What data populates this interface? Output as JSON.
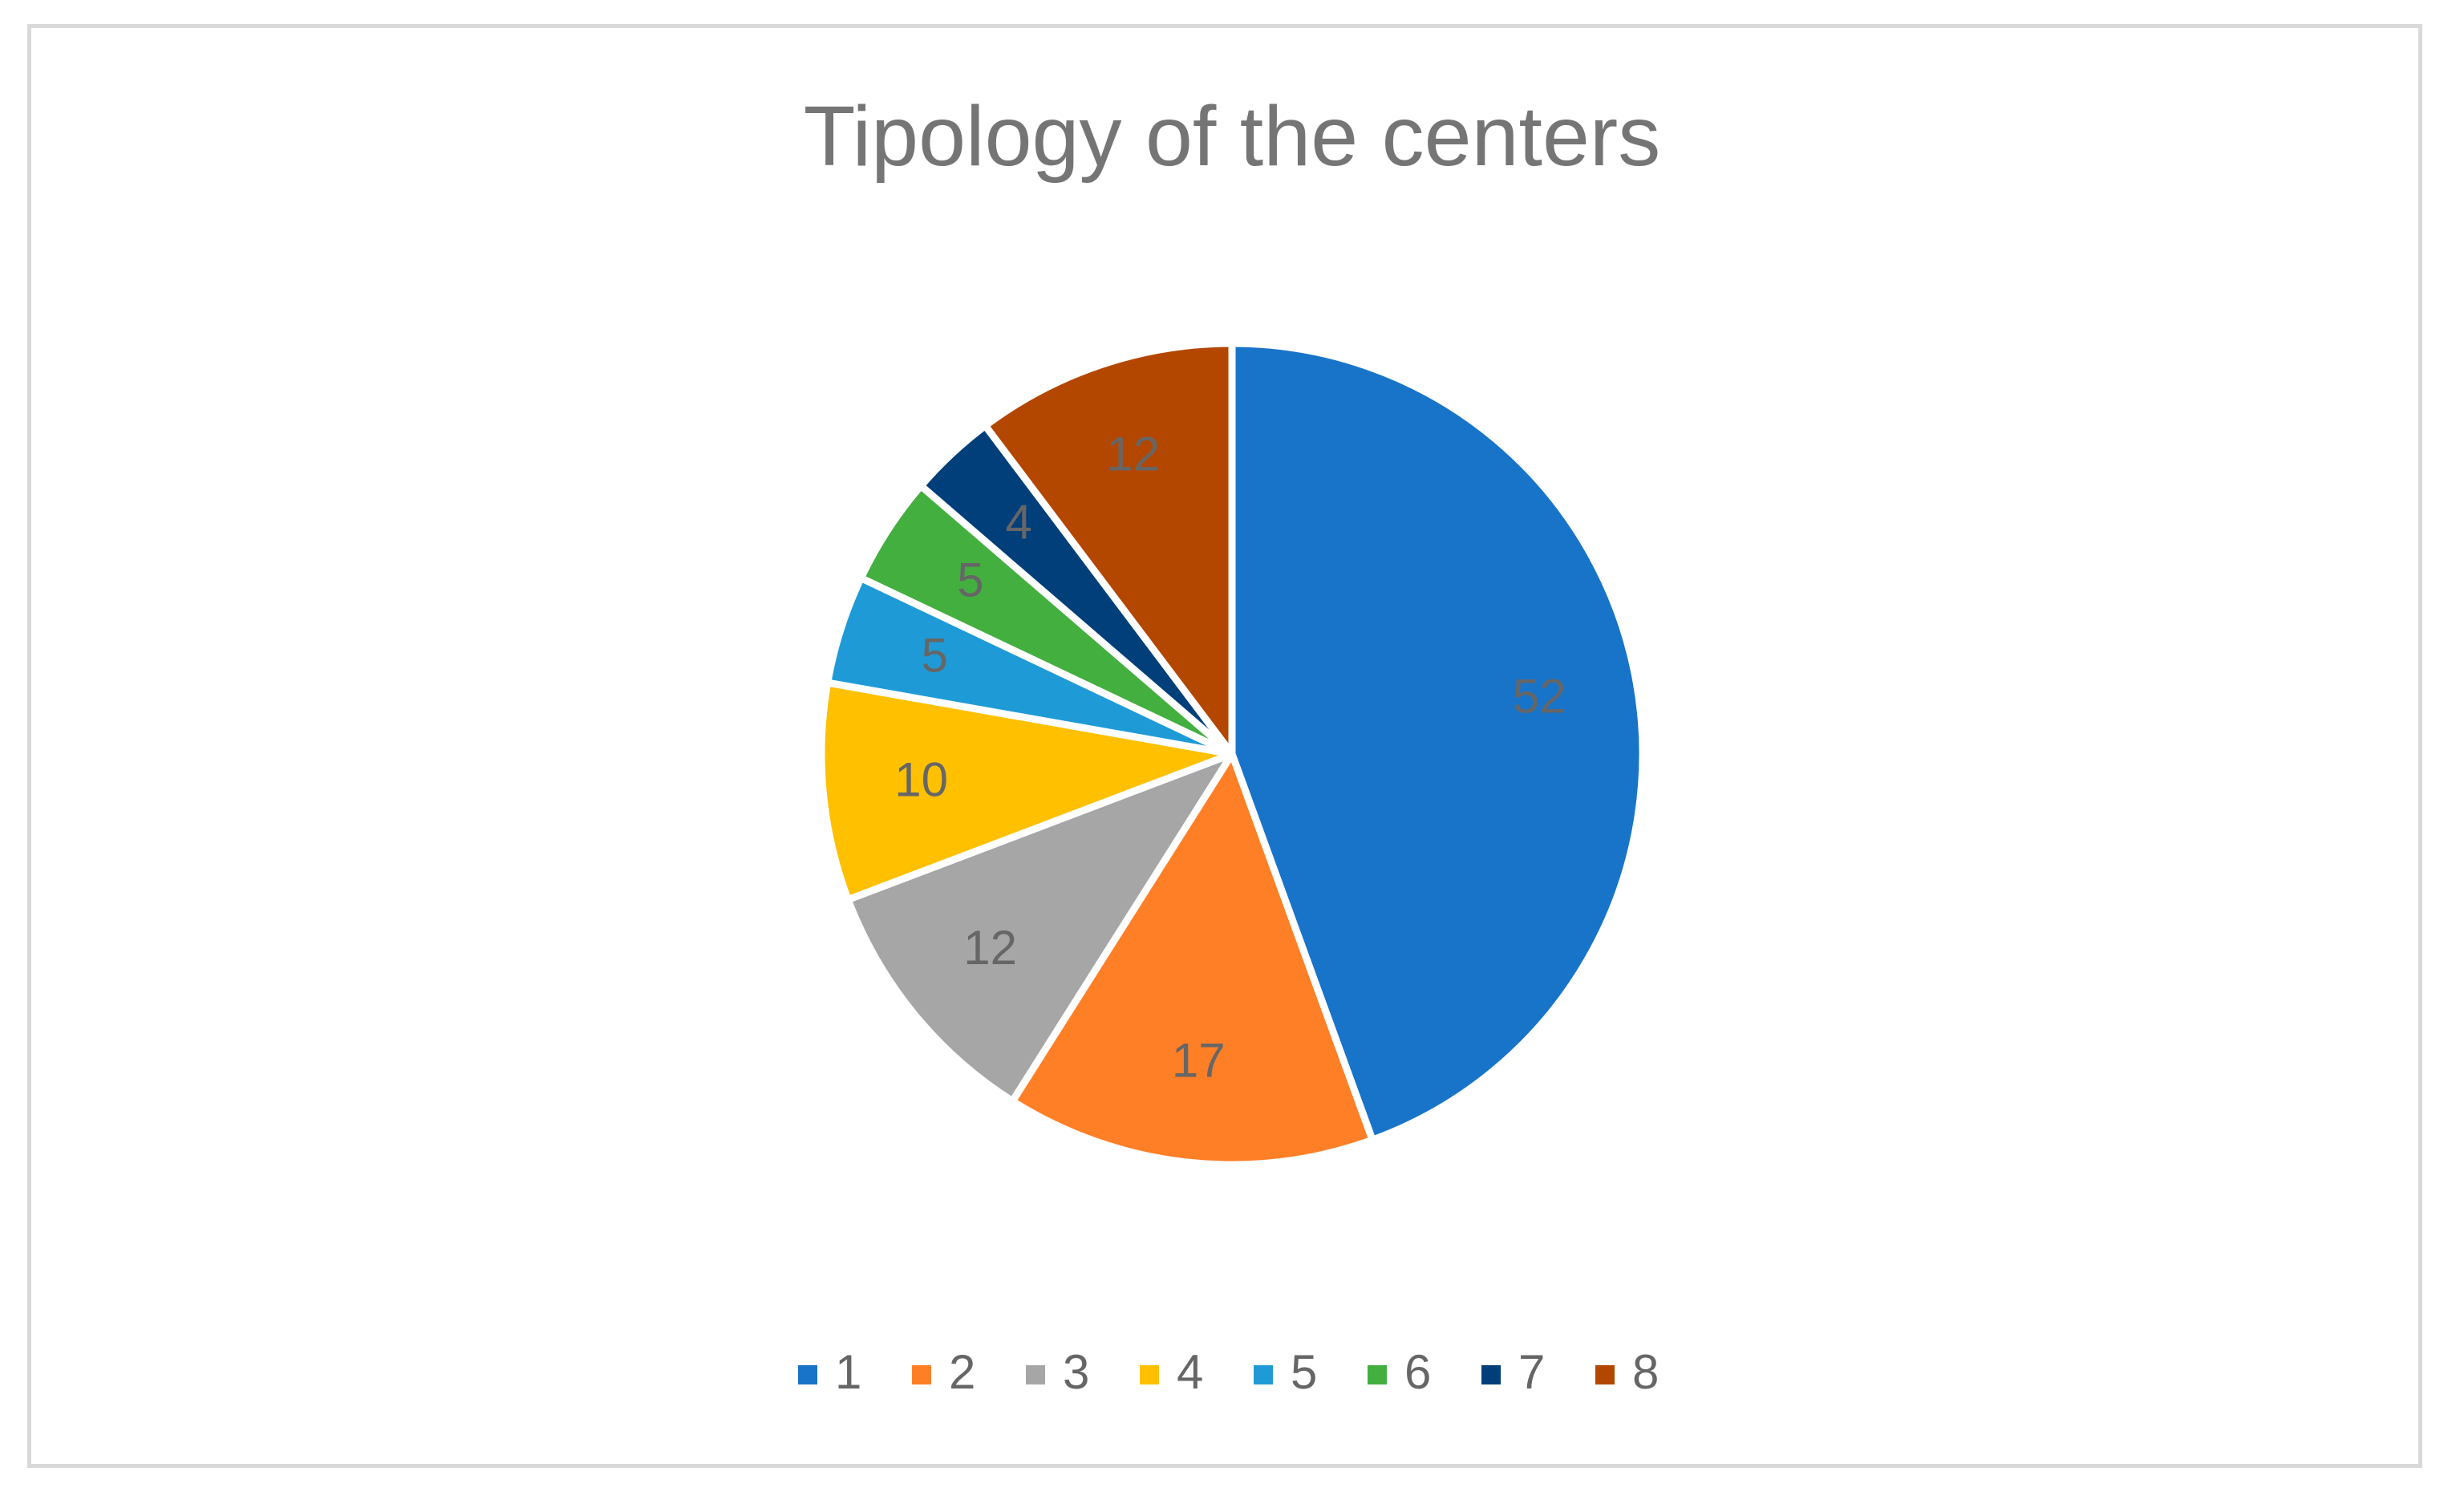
{
  "chart_data": {
    "type": "pie",
    "title": "Tipology of the centers",
    "categories": [
      "1",
      "2",
      "3",
      "4",
      "5",
      "6",
      "7",
      "8"
    ],
    "values": [
      52,
      17,
      12,
      10,
      5,
      5,
      4,
      12
    ],
    "data_labels": [
      "52",
      "17",
      "12",
      "10",
      "5",
      "5",
      "4",
      "12"
    ],
    "colors": [
      "#1874C9",
      "#FF7F27",
      "#A6A6A6",
      "#FFC000",
      "#1E9BD7",
      "#43AF3F",
      "#003F7A",
      "#B34700"
    ],
    "legend": {
      "position": "bottom",
      "entries": [
        "1",
        "2",
        "3",
        "4",
        "5",
        "6",
        "7",
        "8"
      ]
    }
  }
}
